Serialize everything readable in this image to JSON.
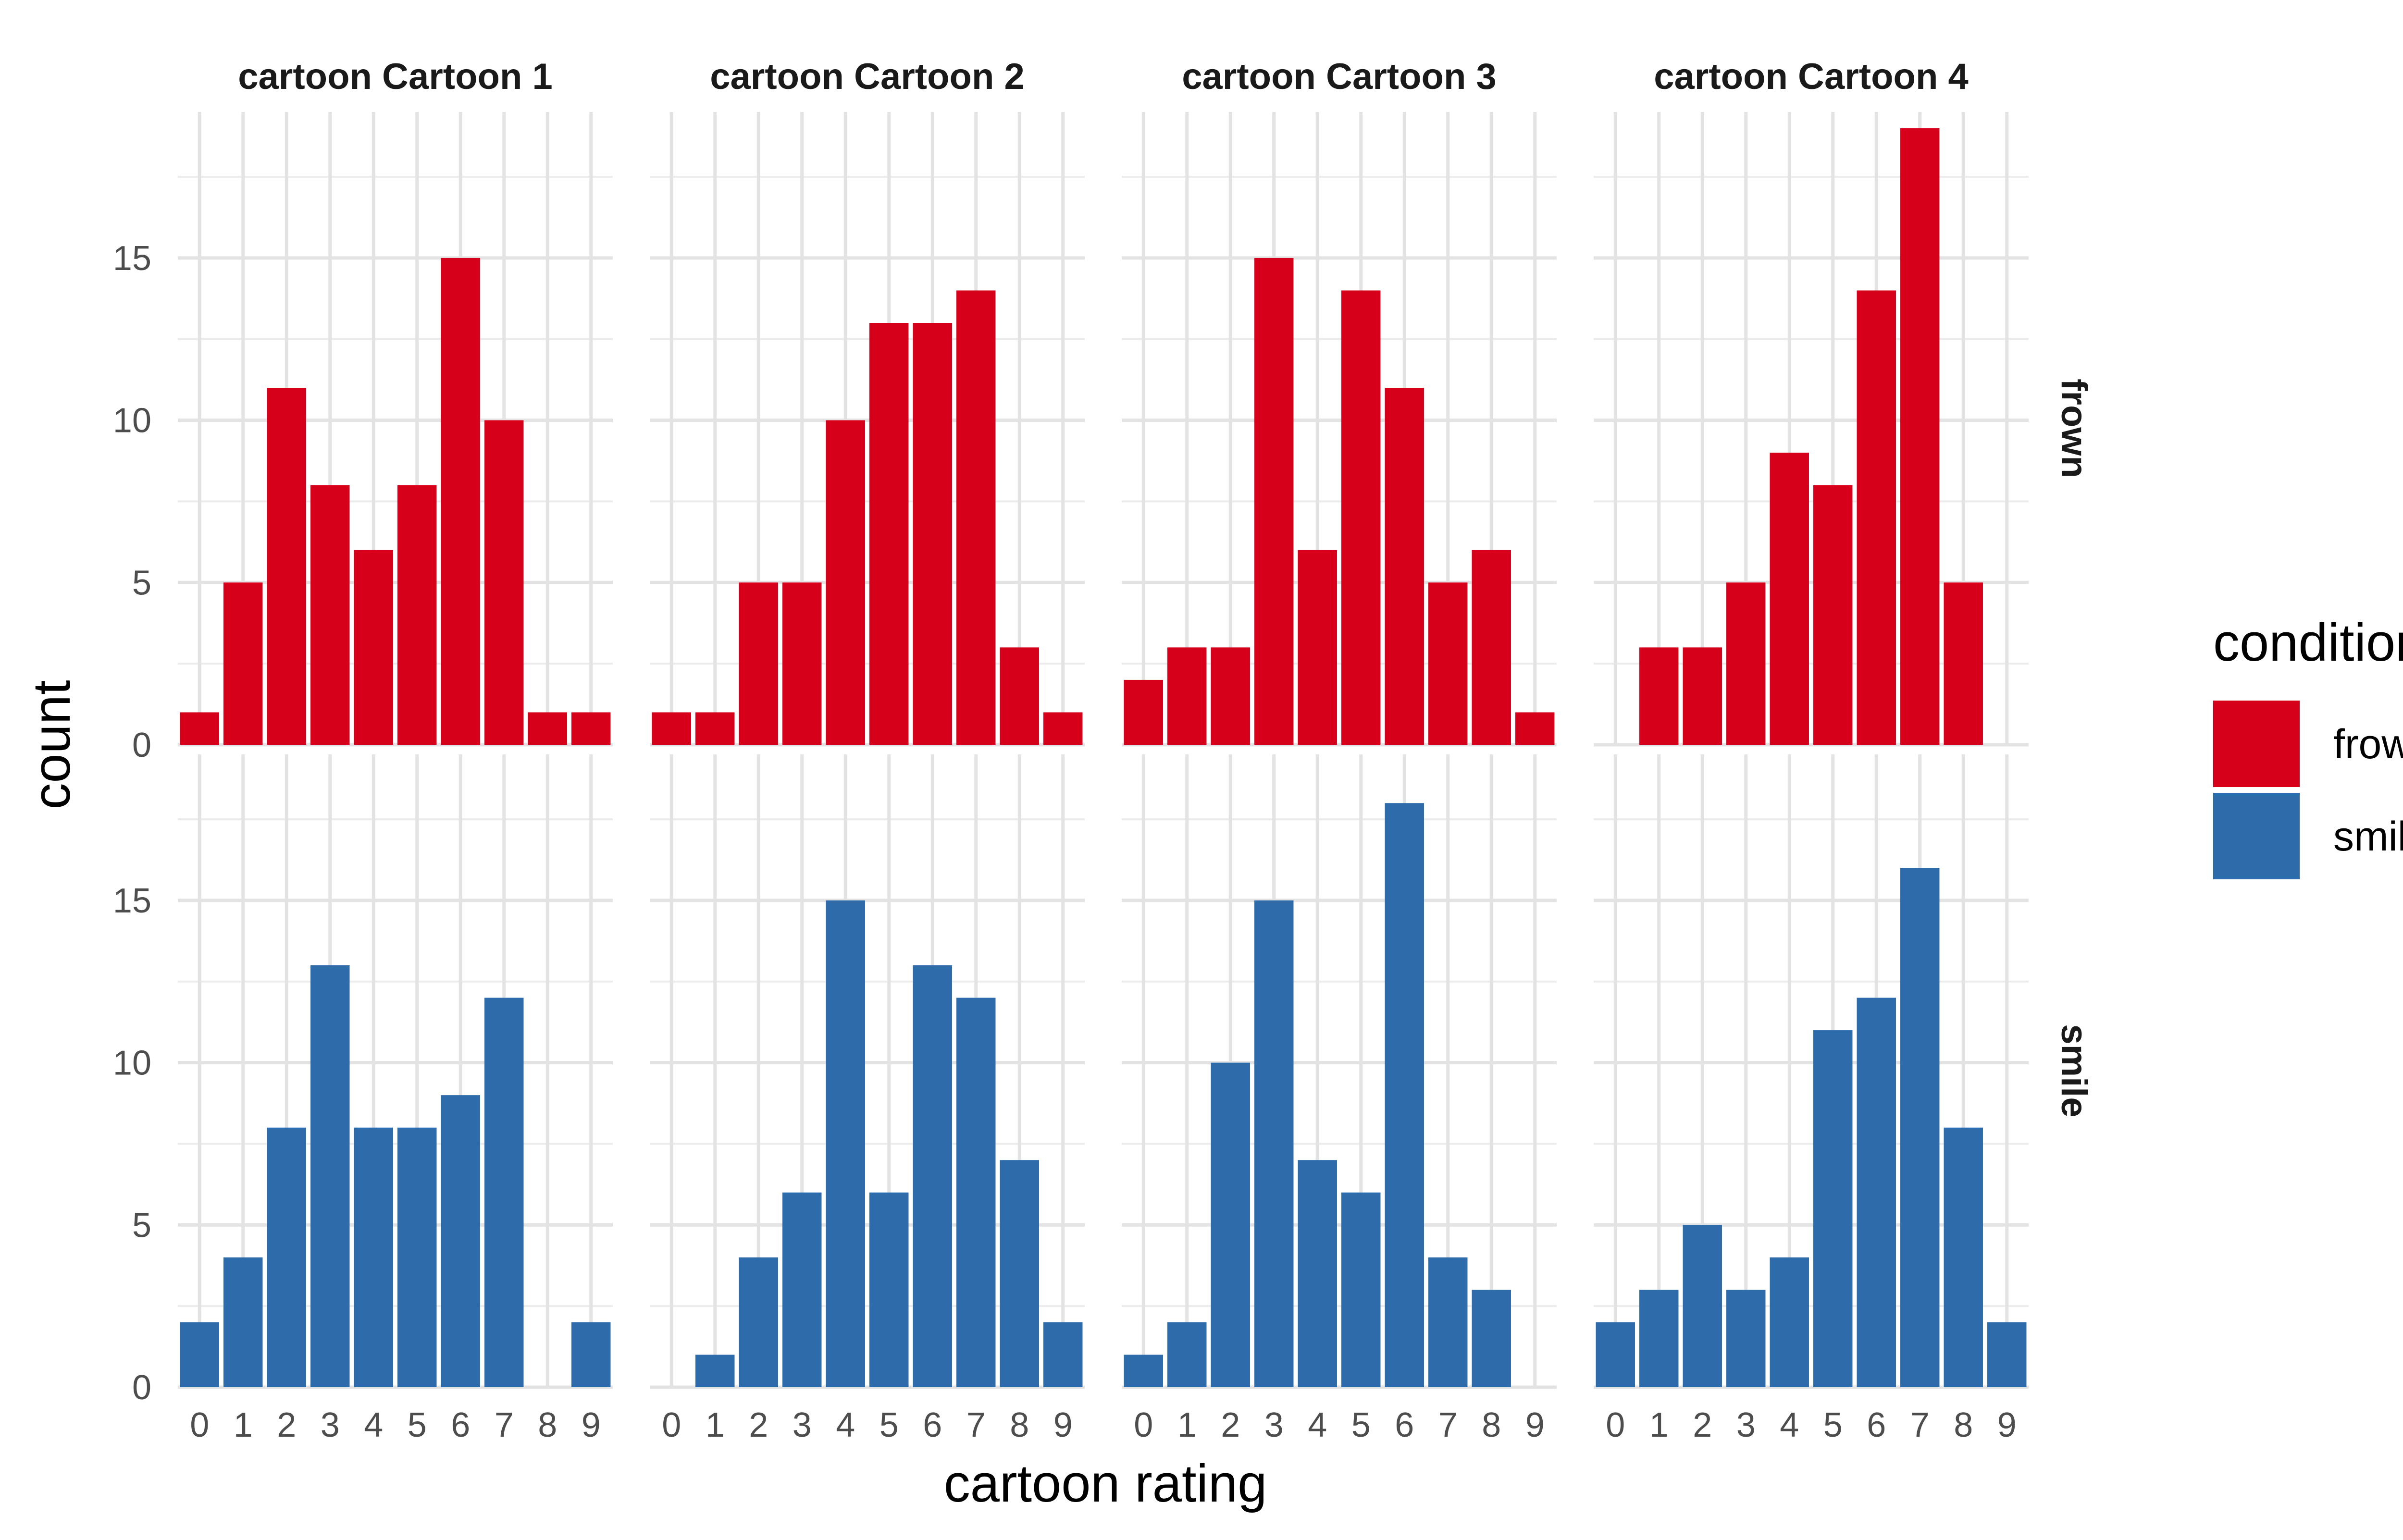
{
  "chart_data": {
    "type": "bar",
    "facet_columns": [
      "cartoon Cartoon 1",
      "cartoon Cartoon 2",
      "cartoon Cartoon 3",
      "cartoon Cartoon 4"
    ],
    "facet_rows": [
      "frown",
      "smile"
    ],
    "categories": [
      "0",
      "1",
      "2",
      "3",
      "4",
      "5",
      "6",
      "7",
      "8",
      "9"
    ],
    "xlabel": "cartoon rating",
    "ylabel": "count",
    "ylim": [
      0,
      19.5
    ],
    "yticks": [
      "0",
      "5",
      "10",
      "15"
    ],
    "grid": true,
    "legend": {
      "title": "condition",
      "position": "right",
      "entries": [
        {
          "label": "frown",
          "color": "#D7001B"
        },
        {
          "label": "smile",
          "color": "#2E6BAB"
        }
      ]
    },
    "panels": [
      {
        "row": "frown",
        "col": "cartoon Cartoon 1",
        "values": [
          1,
          5,
          11,
          8,
          6,
          8,
          15,
          10,
          1,
          1
        ]
      },
      {
        "row": "frown",
        "col": "cartoon Cartoon 2",
        "values": [
          1,
          1,
          5,
          5,
          10,
          13,
          13,
          14,
          3,
          1
        ]
      },
      {
        "row": "frown",
        "col": "cartoon Cartoon 3",
        "values": [
          2,
          3,
          3,
          15,
          6,
          14,
          11,
          5,
          6,
          1
        ]
      },
      {
        "row": "frown",
        "col": "cartoon Cartoon 4",
        "values": [
          0,
          3,
          3,
          5,
          9,
          8,
          14,
          19,
          5,
          0
        ]
      },
      {
        "row": "smile",
        "col": "cartoon Cartoon 1",
        "values": [
          2,
          4,
          8,
          13,
          8,
          8,
          9,
          12,
          0,
          2
        ]
      },
      {
        "row": "smile",
        "col": "cartoon Cartoon 2",
        "values": [
          0,
          1,
          4,
          6,
          15,
          6,
          13,
          12,
          7,
          2
        ]
      },
      {
        "row": "smile",
        "col": "cartoon Cartoon 3",
        "values": [
          1,
          2,
          10,
          15,
          7,
          6,
          18,
          4,
          3,
          0
        ]
      },
      {
        "row": "smile",
        "col": "cartoon Cartoon 4",
        "values": [
          2,
          3,
          5,
          3,
          4,
          11,
          12,
          16,
          8,
          2
        ]
      }
    ]
  }
}
